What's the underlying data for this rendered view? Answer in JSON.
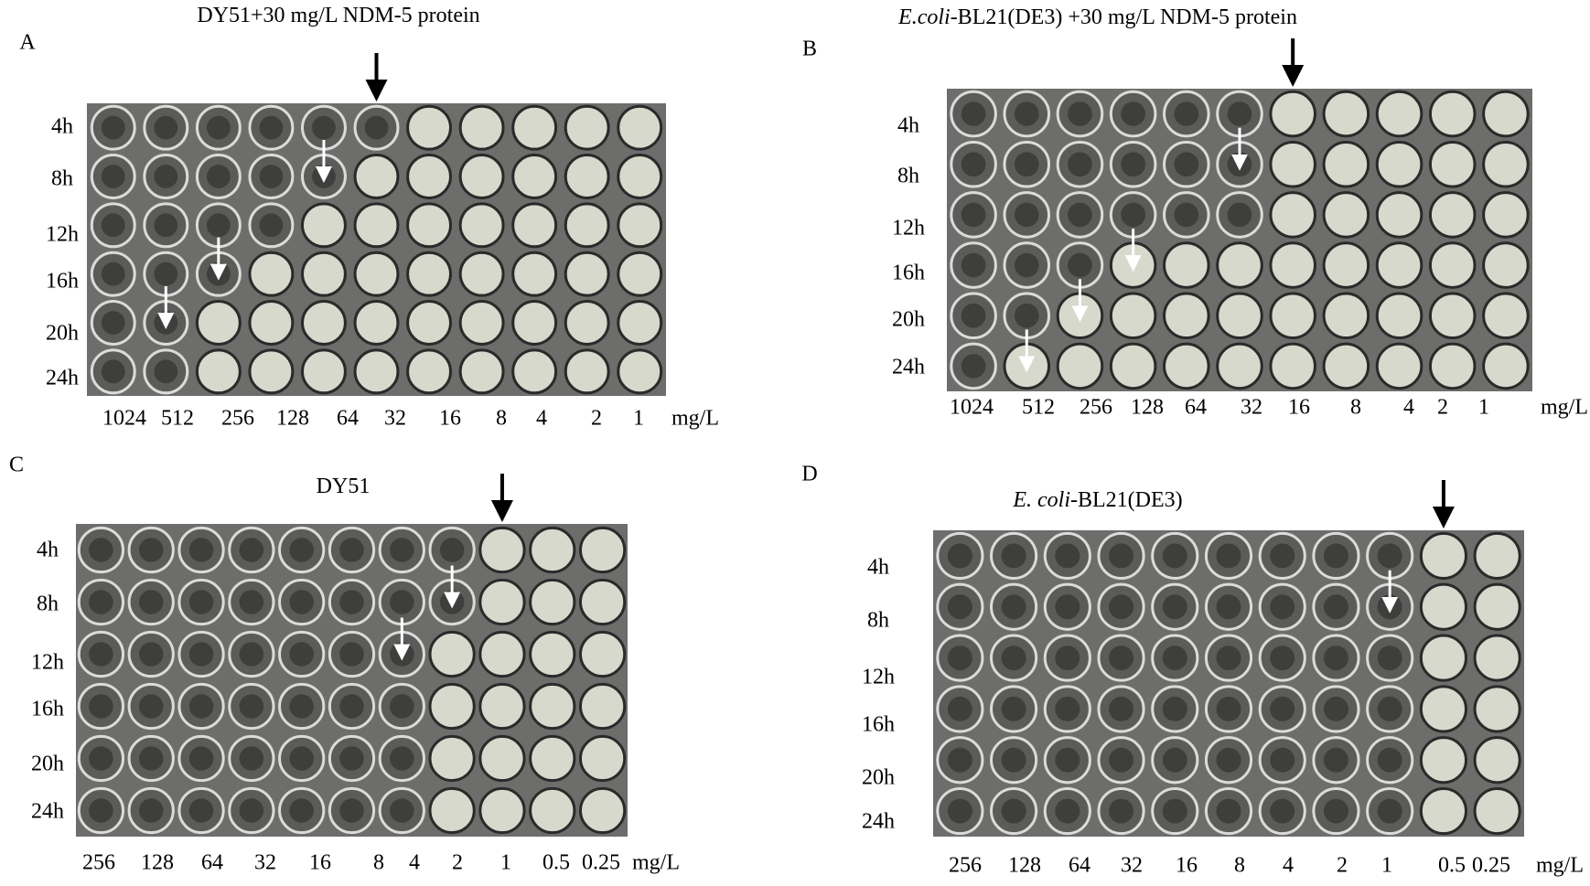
{
  "panels": [
    {
      "letter": "A",
      "title_parts": [
        {
          "text": "DY51+30 mg/L NDM-5 protein",
          "style": "normal"
        }
      ],
      "rows": [
        "4h",
        "8h",
        "12h",
        "16h",
        "20h",
        "24h"
      ],
      "columns": [
        "1024",
        "512",
        "256",
        "128",
        "64",
        "32",
        "16",
        "8",
        "4",
        "2",
        "1"
      ],
      "unit": "mg/L"
    },
    {
      "letter": "B",
      "title_parts": [
        {
          "text": "E.coli",
          "style": "italic"
        },
        {
          "text": "-BL21(DE3) +30 mg/L NDM-5 protein",
          "style": "normal"
        }
      ],
      "rows": [
        "4h",
        "8h",
        "12h",
        "16h",
        "20h",
        "24h"
      ],
      "columns": [
        "1024",
        "512",
        "256",
        "128",
        "64",
        "32",
        "16",
        "8",
        "4",
        "2",
        "1"
      ],
      "unit": "mg/L"
    },
    {
      "letter": "C",
      "title_parts": [
        {
          "text": "DY51",
          "style": "normal"
        }
      ],
      "rows": [
        "4h",
        "8h",
        "12h",
        "16h",
        "20h",
        "24h"
      ],
      "columns": [
        "256",
        "128",
        "64",
        "32",
        "16",
        "8",
        "4",
        "2",
        "1",
        "0.5",
        "0.25"
      ],
      "unit": "mg/L"
    },
    {
      "letter": "D",
      "title_parts": [
        {
          "text": "E. coli",
          "style": "italic"
        },
        {
          "text": "-BL21(DE3)",
          "style": "normal"
        }
      ],
      "rows": [
        "4h",
        "8h",
        "12h",
        "16h",
        "20h",
        "24h"
      ],
      "columns": [
        "256",
        "128",
        "64",
        "32",
        "16",
        "8",
        "4",
        "2",
        "1",
        "0.5",
        "0.25"
      ],
      "unit": "mg/L"
    }
  ]
}
